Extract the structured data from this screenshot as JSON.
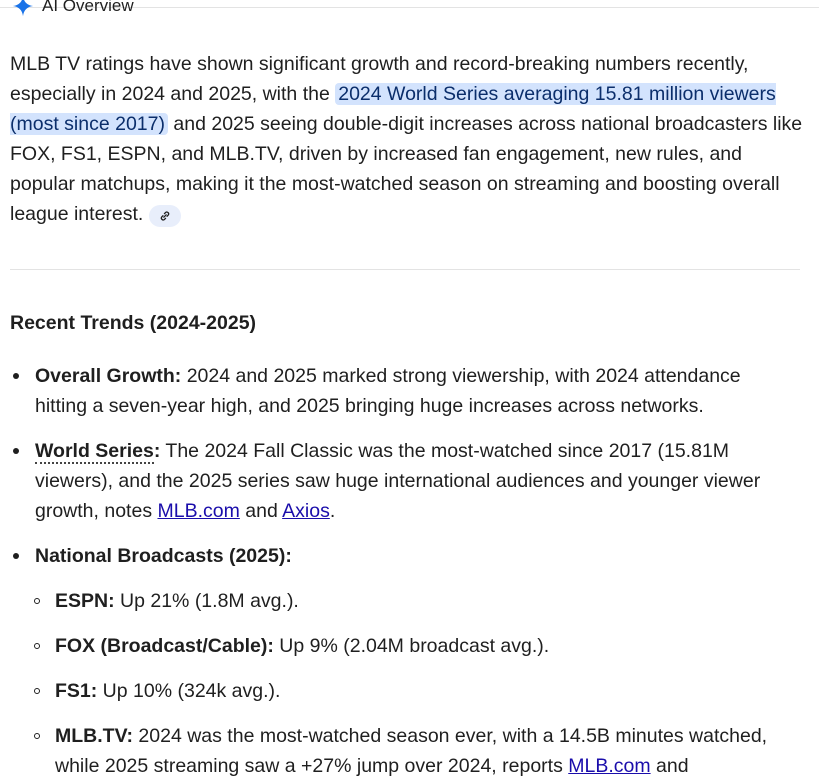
{
  "header": {
    "title": "AI Overview",
    "icon": "gemini-sparkle-icon",
    "accent": "#1a73e8"
  },
  "summary": {
    "before": "MLB TV ratings have shown significant growth and record-breaking numbers recently, especially in 2024 and 2025, with the ",
    "highlight": "2024 World Series averaging 15.81 million viewers (most since 2017)",
    "after": " and 2025 seeing double-digit increases across national broadcasters like FOX, FS1, ESPN, and MLB.TV, driven by increased fan engagement, new rules, and popular matchups, making it the most-watched season on streaming and boosting overall league interest.",
    "link_icon": "link-icon"
  },
  "section_title": "Recent Trends (2024-2025)",
  "items": {
    "overall": {
      "label": "Overall Growth:",
      "line1": " 2024 and 2025 marked strong viewership, with 2024 attendance",
      "line2": "hitting a seven-year high, and 2025 bringing huge increases across networks."
    },
    "world_series": {
      "label": "World Series",
      "colon": ":",
      "line1": " The 2024 Fall Classic was the most-watched since 2017 (15.81M",
      "line2": "viewers), and the 2025 series saw huge international audiences and younger viewer",
      "line3_pre": "growth, notes ",
      "link1": "MLB.com",
      "mid": " and ",
      "link2": "Axios",
      "end": "."
    },
    "national": {
      "label": "National Broadcasts (2025):"
    },
    "espn": {
      "label": "ESPN:",
      "text": " Up 21% (1.8M avg.)."
    },
    "fox": {
      "label": "FOX (Broadcast/Cable):",
      "text": " Up 9% (2.04M broadcast avg.)."
    },
    "fs1": {
      "label": "FS1:",
      "text": " Up 10% (324k avg.)."
    },
    "mlbtv": {
      "label": "MLB.TV:",
      "line1": " 2024 was the most-watched season ever, with a 14.5B minutes watched,",
      "line2_pre": "while 2025 streaming saw a +27% jump over 2024, reports ",
      "link": "MLB.com",
      "line2_end": " and"
    }
  }
}
